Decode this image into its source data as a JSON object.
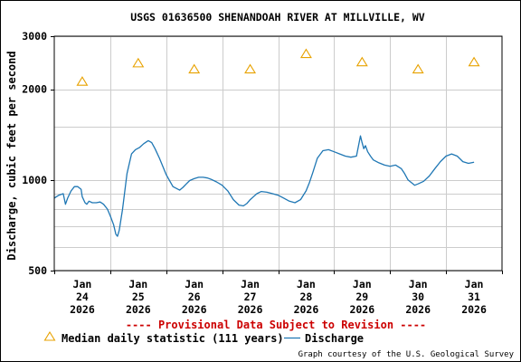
{
  "chart_data": {
    "type": "line",
    "title": "USGS 01636500 SHENANDOAH RIVER AT MILLVILLE, WV",
    "ylabel": "Discharge, cubic feet per second",
    "xlabel": "",
    "yscale": "log",
    "ylim": [
      500,
      3000
    ],
    "y_ticks": [
      500,
      1000,
      2000,
      3000
    ],
    "y_minor_gridlines": [
      600,
      700,
      800,
      900,
      1500
    ],
    "xlim": [
      0,
      8
    ],
    "x_ticks": [
      {
        "x": 0.5,
        "lines": [
          "Jan",
          "24",
          "2026"
        ]
      },
      {
        "x": 1.5,
        "lines": [
          "Jan",
          "25",
          "2026"
        ]
      },
      {
        "x": 2.5,
        "lines": [
          "Jan",
          "26",
          "2026"
        ]
      },
      {
        "x": 3.5,
        "lines": [
          "Jan",
          "27",
          "2026"
        ]
      },
      {
        "x": 4.5,
        "lines": [
          "Jan",
          "28",
          "2026"
        ]
      },
      {
        "x": 5.5,
        "lines": [
          "Jan",
          "29",
          "2026"
        ]
      },
      {
        "x": 6.5,
        "lines": [
          "Jan",
          "30",
          "2026"
        ]
      },
      {
        "x": 7.5,
        "lines": [
          "Jan",
          "31",
          "2026"
        ]
      }
    ],
    "grid": true,
    "legend_position": "bottom-left",
    "series": [
      {
        "name": "Median daily statistic (111 years)",
        "kind": "marker",
        "marker": "triangle",
        "color": "#e8a200",
        "x": [
          0.5,
          1.5,
          2.5,
          3.5,
          4.5,
          5.5,
          6.5,
          7.5
        ],
        "y": [
          2120,
          2440,
          2330,
          2330,
          2620,
          2460,
          2330,
          2460
        ]
      },
      {
        "name": "Discharge",
        "kind": "line",
        "color": "#1f77b4",
        "x": [
          0.0,
          0.08,
          0.16,
          0.2,
          0.24,
          0.3,
          0.36,
          0.42,
          0.48,
          0.5,
          0.55,
          0.58,
          0.62,
          0.68,
          0.75,
          0.82,
          0.88,
          0.95,
          1.0,
          1.06,
          1.1,
          1.13,
          1.16,
          1.22,
          1.3,
          1.38,
          1.45,
          1.52,
          1.6,
          1.68,
          1.74,
          1.8,
          1.88,
          2.0,
          2.12,
          2.24,
          2.3,
          2.36,
          2.42,
          2.5,
          2.58,
          2.66,
          2.74,
          2.8,
          2.9,
          3.0,
          3.1,
          3.2,
          3.3,
          3.38,
          3.44,
          3.5,
          3.56,
          3.62,
          3.7,
          3.8,
          3.9,
          4.0,
          4.1,
          4.2,
          4.3,
          4.4,
          4.5,
          4.56,
          4.62,
          4.7,
          4.8,
          4.9,
          5.0,
          5.1,
          5.2,
          5.3,
          5.4,
          5.47,
          5.5,
          5.53,
          5.56,
          5.6,
          5.65,
          5.7,
          5.8,
          5.9,
          6.0,
          6.1,
          6.2,
          6.26,
          6.32,
          6.38,
          6.44,
          6.5,
          6.6,
          6.7,
          6.8,
          6.9,
          7.0,
          7.1,
          7.2,
          7.3,
          7.4,
          7.5
        ],
        "y": [
          870,
          890,
          900,
          830,
          870,
          920,
          950,
          950,
          930,
          880,
          840,
          830,
          850,
          840,
          840,
          845,
          830,
          800,
          760,
          710,
          660,
          650,
          680,
          800,
          1050,
          1220,
          1260,
          1280,
          1320,
          1350,
          1330,
          1270,
          1180,
          1040,
          950,
          925,
          945,
          970,
          995,
          1010,
          1020,
          1020,
          1015,
          1005,
          985,
          960,
          920,
          860,
          825,
          820,
          835,
          860,
          880,
          900,
          915,
          910,
          900,
          890,
          870,
          850,
          840,
          860,
          920,
          980,
          1060,
          1180,
          1250,
          1260,
          1240,
          1220,
          1200,
          1190,
          1200,
          1400,
          1330,
          1270,
          1300,
          1240,
          1200,
          1165,
          1140,
          1120,
          1110,
          1120,
          1090,
          1050,
          1000,
          980,
          960,
          970,
          990,
          1030,
          1090,
          1150,
          1200,
          1220,
          1200,
          1150,
          1135,
          1145
        ]
      }
    ]
  },
  "notices": {
    "provisional": "---- Provisional Data Subject to Revision ----",
    "credit": "Graph courtesy of the U.S. Geological Survey"
  }
}
